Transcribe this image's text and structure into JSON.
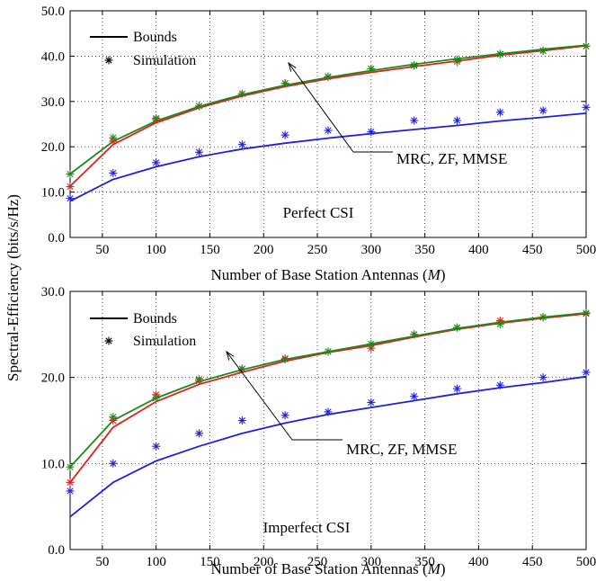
{
  "figure": {
    "shared_ylabel": "Spectral-Efficiency (bits/s/Hz)"
  },
  "chart_data": [
    {
      "type": "line",
      "x": [
        20,
        60,
        100,
        140,
        180,
        220,
        260,
        300,
        340,
        380,
        420,
        460,
        500
      ],
      "xlim": [
        20,
        500
      ],
      "ylim": [
        0,
        50
      ],
      "xticks": [
        50,
        100,
        150,
        200,
        250,
        300,
        350,
        400,
        450,
        500
      ],
      "yticks": [
        0,
        10,
        20,
        30,
        40,
        50
      ],
      "ytick_labels": [
        "0.0",
        "10.0",
        "20.0",
        "30.0",
        "40.0",
        "50.0"
      ],
      "xlabel_prefix": "Number of Base Station Antennas (",
      "xlabel_var": "M",
      "xlabel_suffix": ")",
      "grid": true,
      "legend": {
        "position": "top-left",
        "lines": "Bounds",
        "markers": "Simulation"
      },
      "annotations": {
        "methods": "MRC, ZF, MMSE",
        "scenario": "Perfect CSI"
      },
      "colors": {
        "MRC": "#1f1fe0",
        "ZF": "#e02020",
        "MMSE": "#1a8a1a"
      },
      "series": [
        {
          "color": "#1f1fe0",
          "bound": [
            8.0,
            12.8,
            15.6,
            17.8,
            19.5,
            20.8,
            21.9,
            22.9,
            23.8,
            24.7,
            25.7,
            26.5,
            27.4
          ],
          "simulation": [
            8.6,
            14.2,
            16.5,
            18.8,
            20.5,
            22.6,
            23.6,
            23.3,
            25.8,
            25.8,
            27.6,
            28.0,
            28.7
          ]
        },
        {
          "color": "#e02020",
          "bound": [
            11.3,
            20.5,
            25.3,
            28.6,
            31.2,
            33.3,
            35.0,
            36.4,
            37.7,
            38.9,
            40.2,
            41.2,
            42.3
          ],
          "simulation": [
            11.2,
            21.2,
            26.0,
            29.0,
            31.7,
            34.0,
            35.4,
            37.2,
            37.9,
            38.8,
            40.5,
            41.2,
            42.2
          ]
        },
        {
          "color": "#1a8a1a",
          "bound": [
            14.0,
            21.2,
            25.7,
            28.9,
            31.5,
            33.6,
            35.3,
            36.8,
            38.2,
            39.4,
            40.5,
            41.5,
            42.4
          ],
          "simulation": [
            14.0,
            22.0,
            26.3,
            29.0,
            31.7,
            34.0,
            35.5,
            37.2,
            38.0,
            39.2,
            40.4,
            41.2,
            42.2
          ]
        }
      ]
    },
    {
      "type": "line",
      "x": [
        20,
        60,
        100,
        140,
        180,
        220,
        260,
        300,
        340,
        380,
        420,
        460,
        500
      ],
      "xlim": [
        20,
        500
      ],
      "ylim": [
        0,
        30
      ],
      "xticks": [
        50,
        100,
        150,
        200,
        250,
        300,
        350,
        400,
        450,
        500
      ],
      "yticks": [
        0,
        10,
        20,
        30
      ],
      "ytick_labels": [
        "0.0",
        "10.0",
        "20.0",
        "30.0"
      ],
      "xlabel_prefix": "Number of Base Station Antennas (",
      "xlabel_var": "M",
      "xlabel_suffix": ")",
      "grid": true,
      "legend": {
        "position": "top-left",
        "lines": "Bounds",
        "markers": "Simulation"
      },
      "annotations": {
        "methods": "MRC, ZF, MMSE",
        "scenario": "Imperfect CSI"
      },
      "colors": {
        "MRC": "#1f1fe0",
        "ZF": "#e02020",
        "MMSE": "#1a8a1a"
      },
      "series": [
        {
          "color": "#1f1fe0",
          "bound": [
            3.8,
            7.8,
            10.3,
            12.0,
            13.5,
            14.7,
            15.7,
            16.5,
            17.3,
            18.1,
            18.8,
            19.4,
            20.1
          ],
          "simulation": [
            6.8,
            10.0,
            12.0,
            13.5,
            15.0,
            15.6,
            16.0,
            17.1,
            17.8,
            18.7,
            19.1,
            20.0,
            20.6
          ]
        },
        {
          "color": "#e02020",
          "bound": [
            7.8,
            14.2,
            17.2,
            19.2,
            20.6,
            21.9,
            22.9,
            23.7,
            24.7,
            25.6,
            26.3,
            26.9,
            27.4
          ],
          "simulation": [
            7.8,
            15.0,
            18.0,
            19.6,
            21.0,
            22.2,
            23.0,
            23.4,
            25.0,
            25.8,
            26.6,
            27.0,
            27.4
          ]
        },
        {
          "color": "#1a8a1a",
          "bound": [
            9.6,
            15.0,
            17.6,
            19.5,
            20.9,
            22.1,
            23.0,
            23.9,
            24.8,
            25.7,
            26.4,
            27.0,
            27.5
          ],
          "simulation": [
            9.6,
            15.4,
            17.6,
            19.8,
            21.0,
            22.1,
            23.0,
            23.9,
            25.0,
            25.8,
            26.2,
            27.0,
            27.5
          ]
        }
      ]
    }
  ]
}
